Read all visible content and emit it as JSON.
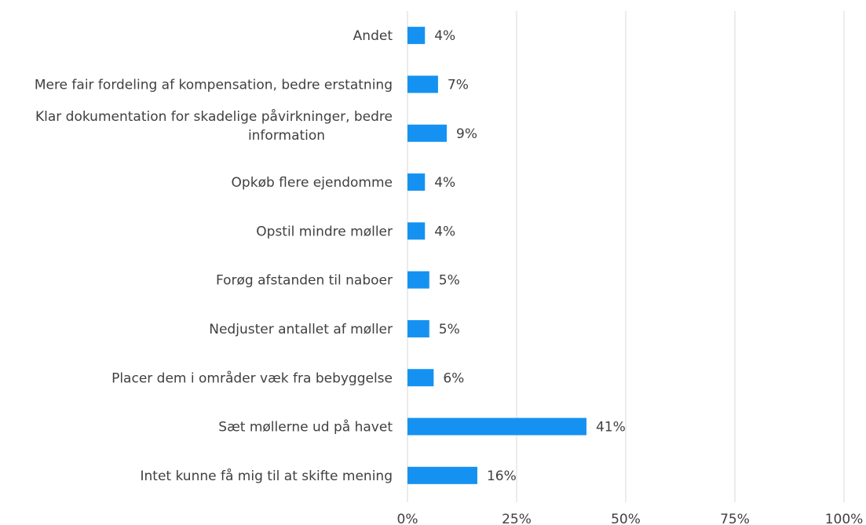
{
  "chart_data": {
    "type": "bar",
    "orientation": "horizontal",
    "categories": [
      "Andet",
      "Mere fair fordeling af kompensation, bedre erstatning",
      "Klar dokumentation for skadelige påvirkninger, bedre information",
      "Opkøb flere ejendomme",
      "Opstil mindre møller",
      "Forøg afstanden til naboer",
      "Nedjuster antallet af møller",
      "Placer dem i områder væk fra bebyggelse",
      "Sæt møllerne ud på havet",
      "Intet kunne få mig til at skifte mening"
    ],
    "category_lines": [
      [
        "Andet"
      ],
      [
        "Mere fair fordeling af kompensation, bedre erstatning"
      ],
      [
        "Klar dokumentation for skadelige påvirkninger, bedre",
        "information"
      ],
      [
        "Opkøb flere ejendomme"
      ],
      [
        "Opstil mindre møller"
      ],
      [
        "Forøg afstanden til naboer"
      ],
      [
        "Nedjuster antallet af møller"
      ],
      [
        "Placer dem i områder væk fra bebyggelse"
      ],
      [
        "Sæt møllerne ud på havet"
      ],
      [
        "Intet kunne få mig til at skifte mening"
      ]
    ],
    "values": [
      4,
      7,
      9,
      4,
      4,
      5,
      5,
      6,
      41,
      16
    ],
    "value_labels": [
      "4%",
      "7%",
      "9%",
      "4%",
      "4%",
      "5%",
      "5%",
      "6%",
      "41%",
      "16%"
    ],
    "xlim": [
      0,
      100
    ],
    "xticks": [
      0,
      25,
      50,
      75,
      100
    ],
    "xtick_labels": [
      "0%",
      "25%",
      "50%",
      "75%",
      "100%"
    ],
    "grid": true,
    "bar_color": "#1592f1",
    "title": "",
    "xlabel": "",
    "ylabel": ""
  }
}
